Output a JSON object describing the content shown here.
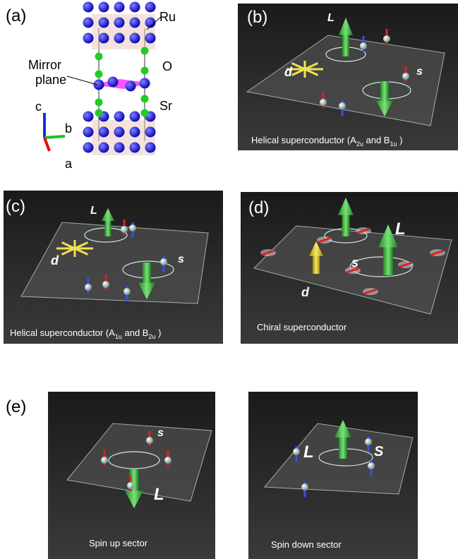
{
  "panel_a": {
    "label": "(a)",
    "ru": "Ru",
    "o": "O",
    "mirror_1": "Mirror",
    "mirror_2": "plane",
    "sr": "Sr",
    "axis_c": "c",
    "axis_b": "b",
    "axis_a": "a"
  },
  "panel_b": {
    "label": "(b)",
    "L": "L",
    "d": "d",
    "s": "s",
    "caption": {
      "t1": "Helical superconductor (A",
      "s1": "2u",
      "t2": " and B",
      "s2": "1u",
      "t3": " )"
    }
  },
  "panel_c": {
    "label": "(c)",
    "L": "L",
    "d": "d",
    "s": "s",
    "caption": {
      "t1": "Helical superconductor (A",
      "s1": "1u",
      "t2": " and B",
      "s2": "2u",
      "t3": " )"
    }
  },
  "panel_d": {
    "label": "(d)",
    "L": "L",
    "d": "d",
    "s": "s",
    "caption": "Chiral superconductor"
  },
  "panel_e": {
    "label": "(e)",
    "up": {
      "s": "s",
      "L": "L",
      "caption": "Spin up sector"
    },
    "down": {
      "L": "L",
      "s": "S",
      "caption": "Spin down sector"
    }
  }
}
